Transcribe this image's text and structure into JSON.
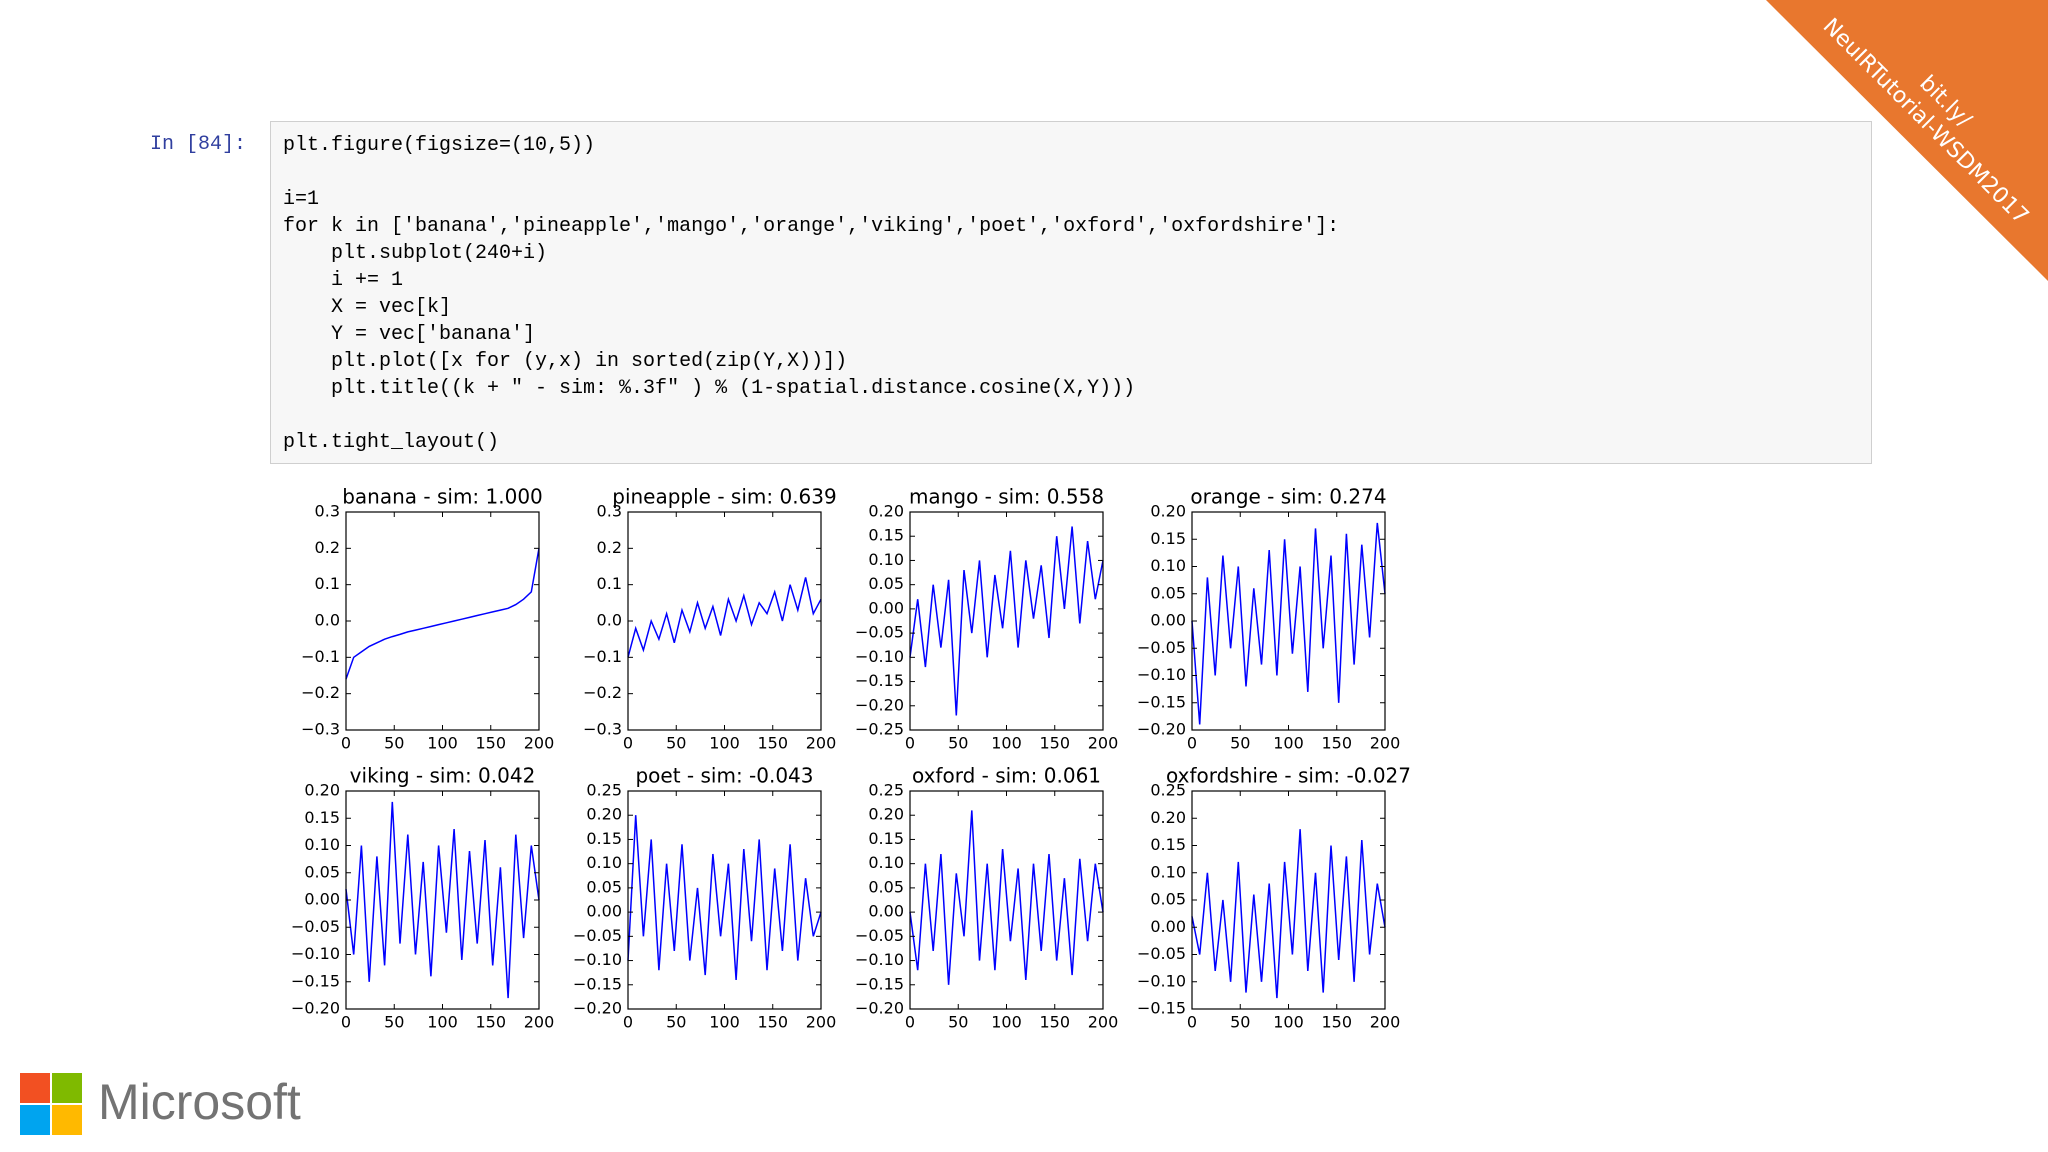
{
  "cell": {
    "prompt": "In [84]:",
    "blocks": [
      [
        "plt.figure(figsize=(10,5))"
      ],
      [
        "i=1",
        "for k in ['banana','pineapple','mango','orange','viking','poet','oxford','oxfordshire']:",
        "    plt.subplot(240+i)",
        "    i += 1",
        "    X = vec[k]",
        "    Y = vec['banana']",
        "    plt.plot([x for (y,x) in sorted(zip(Y,X))])",
        "    plt.title((k + \" - sim: %.3f\" ) % (1-spatial.distance.cosine(X,Y)))"
      ],
      [
        "plt.tight_layout()"
      ]
    ]
  },
  "banner": {
    "lines": [
      "bit.ly/",
      "NeuIRTutorial-WSDM2017"
    ],
    "color": "#e8772e"
  },
  "logo": {
    "text": "Microsoft",
    "colors": [
      "#f25022",
      "#7fba00",
      "#00a4ef",
      "#ffb900"
    ]
  },
  "chart_data": [
    {
      "type": "line",
      "title": "banana - sim: 1.000",
      "xlim": [
        0,
        200
      ],
      "xticks": [
        0,
        50,
        100,
        150,
        200
      ],
      "ylim": [
        -0.3,
        0.3
      ],
      "yticks": [
        {
          "value": -0.3,
          "label": "−0.3"
        },
        {
          "value": -0.2,
          "label": "−0.2"
        },
        {
          "value": -0.1,
          "label": "−0.1"
        },
        {
          "value": 0,
          "label": "0.0"
        },
        0.1,
        0.2,
        0.3
      ],
      "x": [
        0,
        8,
        16,
        24,
        32,
        40,
        48,
        56,
        64,
        72,
        80,
        88,
        96,
        104,
        112,
        120,
        128,
        136,
        144,
        152,
        160,
        168,
        176,
        184,
        192,
        200
      ],
      "series": [
        {
          "color": "#0000ff",
          "values": [
            -0.16,
            -0.1,
            -0.085,
            -0.07,
            -0.06,
            -0.05,
            -0.043,
            -0.037,
            -0.03,
            -0.025,
            -0.02,
            -0.015,
            -0.01,
            -0.005,
            0.0,
            0.005,
            0.01,
            0.015,
            0.02,
            0.025,
            0.03,
            0.035,
            0.045,
            0.06,
            0.08,
            0.2
          ]
        }
      ]
    },
    {
      "type": "line",
      "title": "pineapple - sim: 0.639",
      "xlim": [
        0,
        200
      ],
      "xticks": [
        0,
        50,
        100,
        150,
        200
      ],
      "ylim": [
        -0.3,
        0.3
      ],
      "yticks": [
        {
          "value": -0.3,
          "label": "−0.3"
        },
        {
          "value": -0.2,
          "label": "−0.2"
        },
        {
          "value": -0.1,
          "label": "−0.1"
        },
        {
          "value": 0,
          "label": "0.0"
        },
        0.1,
        0.2,
        0.3
      ],
      "x": [
        0,
        8,
        16,
        24,
        32,
        40,
        48,
        56,
        64,
        72,
        80,
        88,
        96,
        104,
        112,
        120,
        128,
        136,
        144,
        152,
        160,
        168,
        176,
        184,
        192,
        200
      ],
      "series": [
        {
          "color": "#0000ff",
          "values": [
            -0.1,
            -0.02,
            -0.08,
            0.0,
            -0.05,
            0.02,
            -0.06,
            0.03,
            -0.03,
            0.05,
            -0.02,
            0.04,
            -0.04,
            0.06,
            0.0,
            0.07,
            -0.01,
            0.05,
            0.02,
            0.08,
            0.0,
            0.1,
            0.03,
            0.12,
            0.02,
            0.06
          ]
        }
      ]
    },
    {
      "type": "line",
      "title": "mango - sim: 0.558",
      "xlim": [
        0,
        200
      ],
      "xticks": [
        0,
        50,
        100,
        150,
        200
      ],
      "ylim": [
        -0.25,
        0.2
      ],
      "yticks": [
        {
          "value": -0.25,
          "label": "−0.25"
        },
        {
          "value": -0.2,
          "label": "−0.20"
        },
        {
          "value": -0.15,
          "label": "−0.15"
        },
        {
          "value": -0.1,
          "label": "−0.10"
        },
        {
          "value": -0.05,
          "label": "−0.05"
        },
        {
          "value": 0,
          "label": "0.00"
        },
        0.05,
        {
          "value": 0.1,
          "label": "0.10"
        },
        0.15,
        {
          "value": 0.2,
          "label": "0.20"
        }
      ],
      "x": [
        0,
        8,
        16,
        24,
        32,
        40,
        48,
        56,
        64,
        72,
        80,
        88,
        96,
        104,
        112,
        120,
        128,
        136,
        144,
        152,
        160,
        168,
        176,
        184,
        192,
        200
      ],
      "series": [
        {
          "color": "#0000ff",
          "values": [
            -0.1,
            0.02,
            -0.12,
            0.05,
            -0.08,
            0.06,
            -0.22,
            0.08,
            -0.05,
            0.1,
            -0.1,
            0.07,
            -0.04,
            0.12,
            -0.08,
            0.1,
            -0.02,
            0.09,
            -0.06,
            0.15,
            0.0,
            0.17,
            -0.03,
            0.14,
            0.02,
            0.1
          ]
        }
      ]
    },
    {
      "type": "line",
      "title": "orange - sim: 0.274",
      "xlim": [
        0,
        200
      ],
      "xticks": [
        0,
        50,
        100,
        150,
        200
      ],
      "ylim": [
        -0.2,
        0.2
      ],
      "yticks": [
        {
          "value": -0.2,
          "label": "−0.20"
        },
        {
          "value": -0.15,
          "label": "−0.15"
        },
        {
          "value": -0.1,
          "label": "−0.10"
        },
        {
          "value": -0.05,
          "label": "−0.05"
        },
        {
          "value": 0,
          "label": "0.00"
        },
        0.05,
        {
          "value": 0.1,
          "label": "0.10"
        },
        0.15,
        {
          "value": 0.2,
          "label": "0.20"
        }
      ],
      "x": [
        0,
        8,
        16,
        24,
        32,
        40,
        48,
        56,
        64,
        72,
        80,
        88,
        96,
        104,
        112,
        120,
        128,
        136,
        144,
        152,
        160,
        168,
        176,
        184,
        192,
        200
      ],
      "series": [
        {
          "color": "#0000ff",
          "values": [
            0.0,
            -0.19,
            0.08,
            -0.1,
            0.12,
            -0.05,
            0.1,
            -0.12,
            0.06,
            -0.08,
            0.13,
            -0.1,
            0.15,
            -0.06,
            0.1,
            -0.13,
            0.17,
            -0.05,
            0.12,
            -0.15,
            0.16,
            -0.08,
            0.14,
            -0.03,
            0.18,
            0.05
          ]
        }
      ]
    },
    {
      "type": "line",
      "title": "viking - sim: 0.042",
      "xlim": [
        0,
        200
      ],
      "xticks": [
        0,
        50,
        100,
        150,
        200
      ],
      "ylim": [
        -0.2,
        0.2
      ],
      "yticks": [
        {
          "value": -0.2,
          "label": "−0.20"
        },
        {
          "value": -0.15,
          "label": "−0.15"
        },
        {
          "value": -0.1,
          "label": "−0.10"
        },
        {
          "value": -0.05,
          "label": "−0.05"
        },
        {
          "value": 0,
          "label": "0.00"
        },
        0.05,
        {
          "value": 0.1,
          "label": "0.10"
        },
        0.15,
        {
          "value": 0.2,
          "label": "0.20"
        }
      ],
      "x": [
        0,
        8,
        16,
        24,
        32,
        40,
        48,
        56,
        64,
        72,
        80,
        88,
        96,
        104,
        112,
        120,
        128,
        136,
        144,
        152,
        160,
        168,
        176,
        184,
        192,
        200
      ],
      "series": [
        {
          "color": "#0000ff",
          "values": [
            0.02,
            -0.1,
            0.1,
            -0.15,
            0.08,
            -0.12,
            0.18,
            -0.08,
            0.12,
            -0.1,
            0.07,
            -0.14,
            0.1,
            -0.06,
            0.13,
            -0.11,
            0.09,
            -0.08,
            0.11,
            -0.12,
            0.06,
            -0.18,
            0.12,
            -0.07,
            0.1,
            0.0
          ]
        }
      ]
    },
    {
      "type": "line",
      "title": "poet - sim: -0.043",
      "xlim": [
        0,
        200
      ],
      "xticks": [
        0,
        50,
        100,
        150,
        200
      ],
      "ylim": [
        -0.2,
        0.25
      ],
      "yticks": [
        {
          "value": -0.2,
          "label": "−0.20"
        },
        {
          "value": -0.15,
          "label": "−0.15"
        },
        {
          "value": -0.1,
          "label": "−0.10"
        },
        {
          "value": -0.05,
          "label": "−0.05"
        },
        {
          "value": 0,
          "label": "0.00"
        },
        0.05,
        {
          "value": 0.1,
          "label": "0.10"
        },
        0.15,
        {
          "value": 0.2,
          "label": "0.20"
        },
        0.25
      ],
      "x": [
        0,
        8,
        16,
        24,
        32,
        40,
        48,
        56,
        64,
        72,
        80,
        88,
        96,
        104,
        112,
        120,
        128,
        136,
        144,
        152,
        160,
        168,
        176,
        184,
        192,
        200
      ],
      "series": [
        {
          "color": "#0000ff",
          "values": [
            -0.1,
            0.2,
            -0.05,
            0.15,
            -0.12,
            0.1,
            -0.08,
            0.14,
            -0.1,
            0.05,
            -0.13,
            0.12,
            -0.05,
            0.1,
            -0.14,
            0.13,
            -0.06,
            0.15,
            -0.12,
            0.09,
            -0.08,
            0.14,
            -0.1,
            0.07,
            -0.05,
            0.0
          ]
        }
      ]
    },
    {
      "type": "line",
      "title": "oxford - sim: 0.061",
      "xlim": [
        0,
        200
      ],
      "xticks": [
        0,
        50,
        100,
        150,
        200
      ],
      "ylim": [
        -0.2,
        0.25
      ],
      "yticks": [
        {
          "value": -0.2,
          "label": "−0.20"
        },
        {
          "value": -0.15,
          "label": "−0.15"
        },
        {
          "value": -0.1,
          "label": "−0.10"
        },
        {
          "value": -0.05,
          "label": "−0.05"
        },
        {
          "value": 0,
          "label": "0.00"
        },
        0.05,
        {
          "value": 0.1,
          "label": "0.10"
        },
        0.15,
        {
          "value": 0.2,
          "label": "0.20"
        },
        0.25
      ],
      "x": [
        0,
        8,
        16,
        24,
        32,
        40,
        48,
        56,
        64,
        72,
        80,
        88,
        96,
        104,
        112,
        120,
        128,
        136,
        144,
        152,
        160,
        168,
        176,
        184,
        192,
        200
      ],
      "series": [
        {
          "color": "#0000ff",
          "values": [
            0.0,
            -0.12,
            0.1,
            -0.08,
            0.12,
            -0.15,
            0.08,
            -0.05,
            0.21,
            -0.1,
            0.1,
            -0.12,
            0.13,
            -0.06,
            0.09,
            -0.14,
            0.1,
            -0.08,
            0.12,
            -0.1,
            0.07,
            -0.13,
            0.11,
            -0.06,
            0.1,
            0.0
          ]
        }
      ]
    },
    {
      "type": "line",
      "title": "oxfordshire - sim: -0.027",
      "xlim": [
        0,
        200
      ],
      "xticks": [
        0,
        50,
        100,
        150,
        200
      ],
      "ylim": [
        -0.15,
        0.25
      ],
      "yticks": [
        {
          "value": -0.15,
          "label": "−0.15"
        },
        {
          "value": -0.1,
          "label": "−0.10"
        },
        {
          "value": -0.05,
          "label": "−0.05"
        },
        {
          "value": 0,
          "label": "0.00"
        },
        0.05,
        {
          "value": 0.1,
          "label": "0.10"
        },
        0.15,
        {
          "value": 0.2,
          "label": "0.20"
        },
        0.25
      ],
      "x": [
        0,
        8,
        16,
        24,
        32,
        40,
        48,
        56,
        64,
        72,
        80,
        88,
        96,
        104,
        112,
        120,
        128,
        136,
        144,
        152,
        160,
        168,
        176,
        184,
        192,
        200
      ],
      "series": [
        {
          "color": "#0000ff",
          "values": [
            0.02,
            -0.05,
            0.1,
            -0.08,
            0.05,
            -0.1,
            0.12,
            -0.12,
            0.06,
            -0.1,
            0.08,
            -0.13,
            0.12,
            -0.05,
            0.18,
            -0.08,
            0.1,
            -0.12,
            0.15,
            -0.06,
            0.13,
            -0.1,
            0.16,
            -0.05,
            0.08,
            0.0
          ]
        }
      ]
    }
  ]
}
